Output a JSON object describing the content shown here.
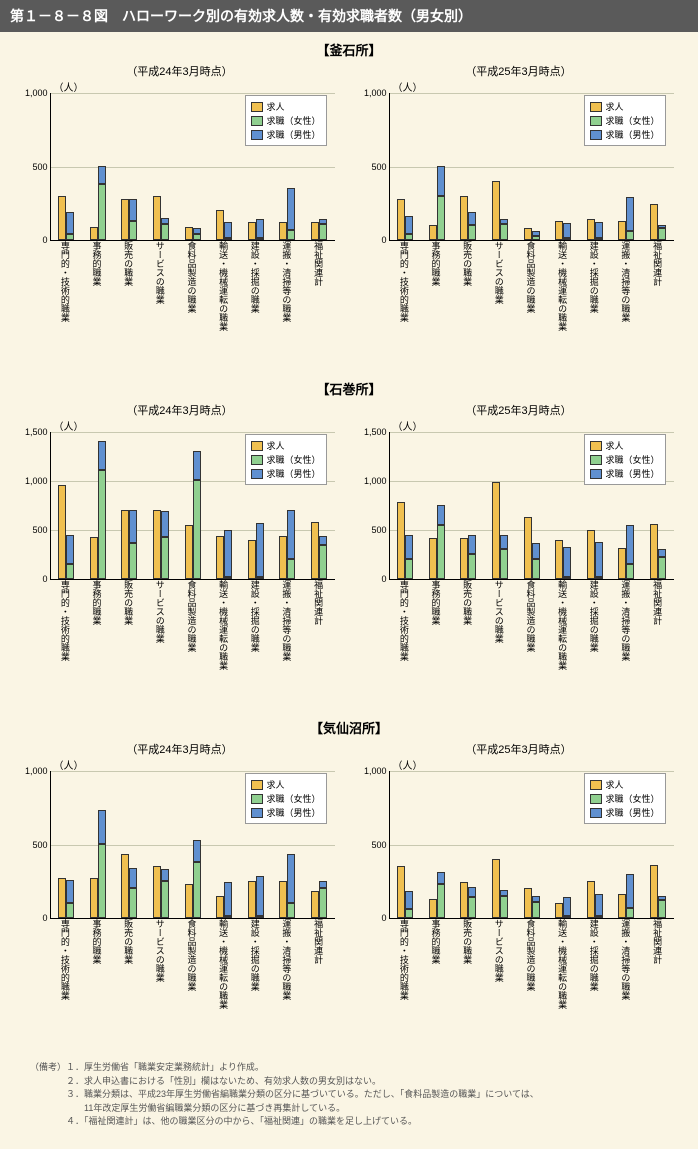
{
  "title": "第１－８－８図　ハローワーク別の有効求人数・有効求職者数（男女別）",
  "colors": {
    "kyujin": "#f0c050",
    "female": "#90d090",
    "male": "#6090d0",
    "bg": "#faf5e4",
    "grid": "#c8c8b0"
  },
  "legend": {
    "kyujin": "求人",
    "female": "求職（女性）",
    "male": "求職（男性）"
  },
  "ylabel": "（人）",
  "categories": [
    "専門的・技術的職業",
    "事務的職業",
    "販売の職業",
    "サービスの職業",
    "食料品製造の職業",
    "輸送・機械運転の職業",
    "建設・採掘の職業",
    "運搬・清掃等の職業",
    "福祉関連計"
  ],
  "sections": [
    {
      "name": "【釜石所】",
      "charts": [
        {
          "subtitle": "（平成24年3月時点）",
          "ymax": 1000,
          "ytick": 500,
          "data": [
            {
              "k": 300,
              "f": 40,
              "m": 150
            },
            {
              "k": 90,
              "f": 380,
              "m": 120
            },
            {
              "k": 280,
              "f": 130,
              "m": 150
            },
            {
              "k": 300,
              "f": 110,
              "m": 40
            },
            {
              "k": 90,
              "f": 40,
              "m": 40
            },
            {
              "k": 200,
              "f": 10,
              "m": 110
            },
            {
              "k": 120,
              "f": 5,
              "m": 130
            },
            {
              "k": 120,
              "f": 70,
              "m": 280
            },
            {
              "k": 120,
              "f": 110,
              "m": 30
            }
          ]
        },
        {
          "subtitle": "（平成25年3月時点）",
          "ymax": 1000,
          "ytick": 500,
          "data": [
            {
              "k": 280,
              "f": 40,
              "m": 120
            },
            {
              "k": 100,
              "f": 300,
              "m": 200
            },
            {
              "k": 300,
              "f": 100,
              "m": 90
            },
            {
              "k": 400,
              "f": 110,
              "m": 30
            },
            {
              "k": 80,
              "f": 30,
              "m": 30
            },
            {
              "k": 130,
              "f": 10,
              "m": 100
            },
            {
              "k": 140,
              "f": 5,
              "m": 110
            },
            {
              "k": 130,
              "f": 60,
              "m": 230
            },
            {
              "k": 240,
              "f": 80,
              "m": 20
            }
          ]
        }
      ]
    },
    {
      "name": "【石巻所】",
      "charts": [
        {
          "subtitle": "（平成24年3月時点）",
          "ymax": 1500,
          "ytick": 500,
          "data": [
            {
              "k": 950,
              "f": 150,
              "m": 300
            },
            {
              "k": 430,
              "f": 1100,
              "m": 300
            },
            {
              "k": 700,
              "f": 360,
              "m": 340
            },
            {
              "k": 700,
              "f": 430,
              "m": 260
            },
            {
              "k": 550,
              "f": 1000,
              "m": 300
            },
            {
              "k": 440,
              "f": 20,
              "m": 480
            },
            {
              "k": 400,
              "f": 10,
              "m": 550
            },
            {
              "k": 440,
              "f": 200,
              "m": 500
            },
            {
              "k": 580,
              "f": 340,
              "m": 100
            }
          ]
        },
        {
          "subtitle": "（平成25年3月時点）",
          "ymax": 1500,
          "ytick": 500,
          "data": [
            {
              "k": 780,
              "f": 200,
              "m": 250
            },
            {
              "k": 420,
              "f": 550,
              "m": 200
            },
            {
              "k": 420,
              "f": 250,
              "m": 200
            },
            {
              "k": 980,
              "f": 300,
              "m": 150
            },
            {
              "k": 630,
              "f": 200,
              "m": 170
            },
            {
              "k": 400,
              "f": 20,
              "m": 300
            },
            {
              "k": 500,
              "f": 10,
              "m": 350
            },
            {
              "k": 310,
              "f": 150,
              "m": 400
            },
            {
              "k": 560,
              "f": 220,
              "m": 80
            }
          ]
        }
      ]
    },
    {
      "name": "【気仙沼所】",
      "charts": [
        {
          "subtitle": "（平成24年3月時点）",
          "ymax": 1000,
          "ytick": 500,
          "data": [
            {
              "k": 270,
              "f": 100,
              "m": 160
            },
            {
              "k": 270,
              "f": 500,
              "m": 230
            },
            {
              "k": 430,
              "f": 200,
              "m": 140
            },
            {
              "k": 350,
              "f": 250,
              "m": 80
            },
            {
              "k": 230,
              "f": 380,
              "m": 150
            },
            {
              "k": 150,
              "f": 10,
              "m": 230
            },
            {
              "k": 250,
              "f": 5,
              "m": 270
            },
            {
              "k": 250,
              "f": 100,
              "m": 330
            },
            {
              "k": 180,
              "f": 200,
              "m": 50
            }
          ]
        },
        {
          "subtitle": "（平成25年3月時点）",
          "ymax": 1000,
          "ytick": 500,
          "data": [
            {
              "k": 350,
              "f": 60,
              "m": 120
            },
            {
              "k": 130,
              "f": 230,
              "m": 80
            },
            {
              "k": 240,
              "f": 140,
              "m": 70
            },
            {
              "k": 400,
              "f": 150,
              "m": 40
            },
            {
              "k": 200,
              "f": 110,
              "m": 40
            },
            {
              "k": 100,
              "f": 10,
              "m": 130
            },
            {
              "k": 250,
              "f": 5,
              "m": 150
            },
            {
              "k": 160,
              "f": 70,
              "m": 230
            },
            {
              "k": 360,
              "f": 120,
              "m": 30
            }
          ]
        }
      ]
    }
  ],
  "notes": [
    "（備考）１．厚生労働省「職業安定業務統計」より作成。",
    "　　　　２．求人申込書における「性別」欄はないため、有効求人数の男女別はない。",
    "　　　　３．職業分類は、平成23年厚生労働省編職業分類の区分に基づいている。ただし、「食料品製造の職業」については、",
    "　　　　　　11年改定厚生労働省編職業分類の区分に基づき再集計している。",
    "　　　　４．「福祉関連計」は、他の職業区分の中から、「福祉関連」の職業を足し上げている。"
  ]
}
